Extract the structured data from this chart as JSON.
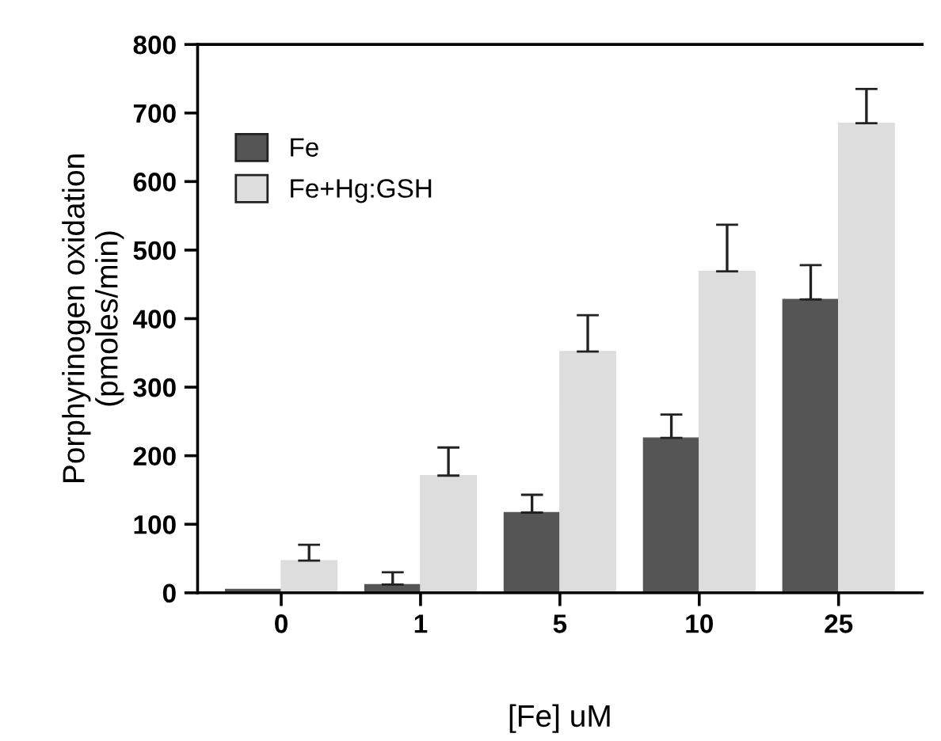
{
  "chart_data": {
    "type": "bar",
    "xlabel": "[Fe] uM",
    "ylabel": "Porphyrinogen oxidation\n(pmoles/min)",
    "categories": [
      "0",
      "1",
      "5",
      "10",
      "25"
    ],
    "series": [
      {
        "name": "Fe",
        "color": "#555555",
        "values": [
          5,
          12,
          117,
          226,
          428
        ],
        "errors": [
          null,
          18,
          26,
          34,
          50
        ]
      },
      {
        "name": "Fe+Hg:GSH",
        "color": "#dddddd",
        "values": [
          47,
          171,
          352,
          469,
          685
        ],
        "errors": [
          23,
          41,
          53,
          68,
          50
        ]
      }
    ],
    "ylim": [
      0,
      800
    ],
    "yticks": [
      0,
      100,
      200,
      300,
      400,
      500,
      600,
      700,
      800
    ],
    "grid": false,
    "legend": "top left"
  }
}
